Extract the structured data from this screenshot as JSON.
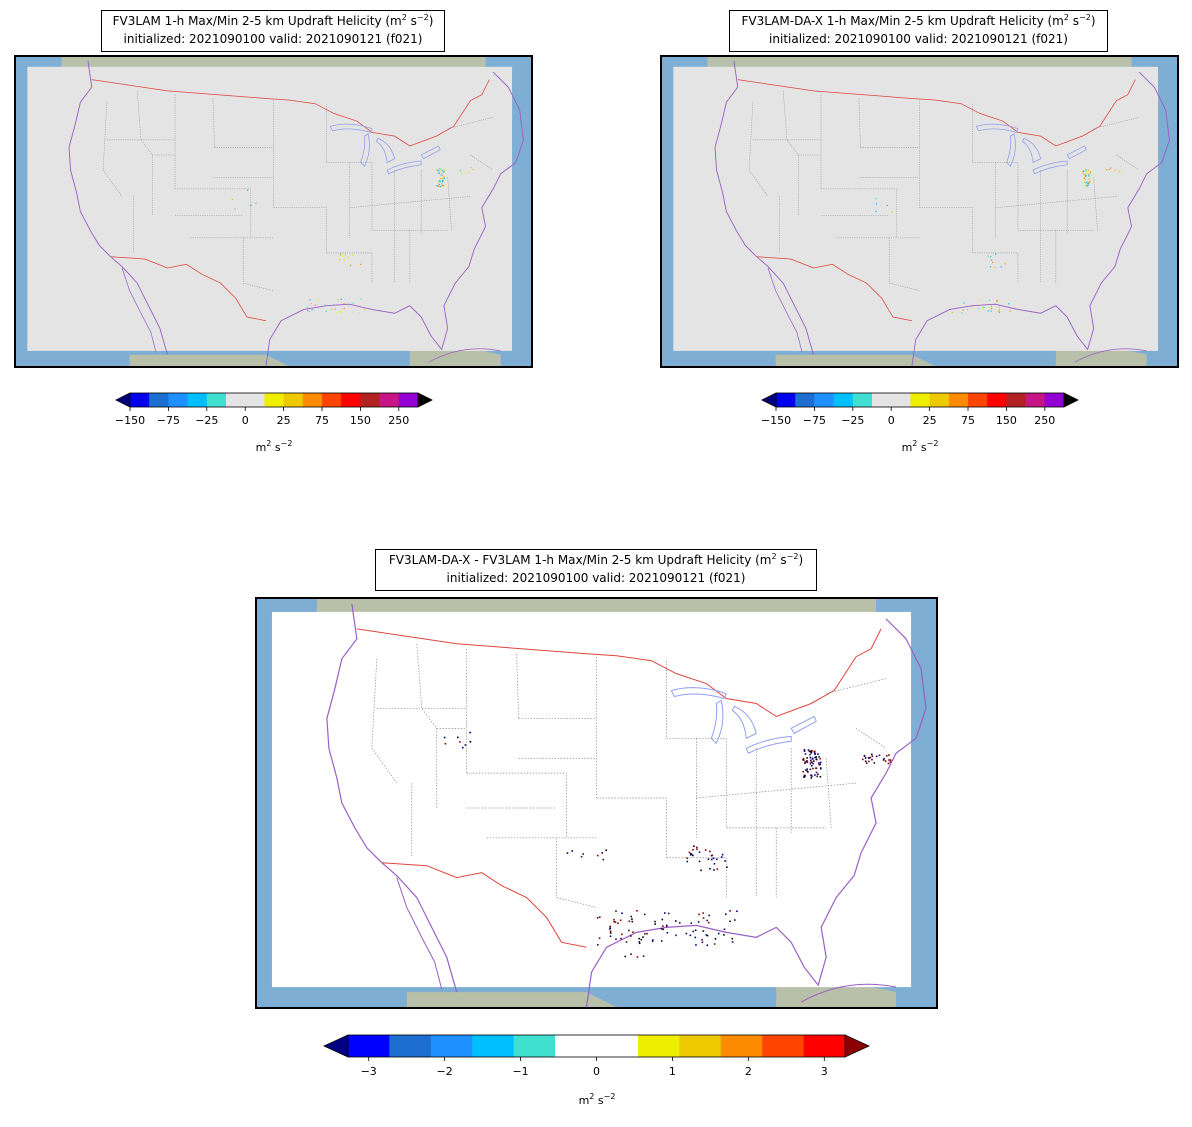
{
  "panels": [
    {
      "title_prefix": "FV3LAM 1-h Max/Min 2-5 km Updraft Helicity (m",
      "title_sup1": "2",
      "title_mid": " s",
      "title_sup2": "−2",
      "title_end": ")",
      "subtitle": "initialized: 2021090100 valid: 2021090121 (f021)",
      "field_fill": "#e4e4e4"
    },
    {
      "title_prefix": "FV3LAM-DA-X 1-h Max/Min 2-5 km Updraft Helicity (m",
      "title_sup1": "2",
      "title_mid": " s",
      "title_sup2": "−2",
      "title_end": ")",
      "subtitle": "initialized: 2021090100 valid: 2021090121 (f021)",
      "field_fill": "#e4e4e4"
    },
    {
      "title_prefix": "FV3LAM-DA-X - FV3LAM 1-h Max/Min 2-5 km Updraft Helicity (m",
      "title_sup1": "2",
      "title_mid": " s",
      "title_sup2": "−2",
      "title_end": ")",
      "subtitle": "initialized: 2021090100 valid: 2021090121 (f021)",
      "field_fill": "#ffffff"
    }
  ],
  "colorbar_uh": {
    "colors": [
      "#0000ee",
      "#1c6fd0",
      "#1e90ff",
      "#00bfff",
      "#40e0d0",
      "#e4e4e4",
      "#e4e4e4",
      "#eeee00",
      "#eec900",
      "#ff8c00",
      "#ff4500",
      "#ff0000",
      "#b22222",
      "#c71585",
      "#9400d3"
    ],
    "under_color": "#000080",
    "over_color": "#000000",
    "tick_labels": [
      "−150",
      "−75",
      "−25",
      "0",
      "25",
      "75",
      "150",
      "250"
    ],
    "unit_base": "m",
    "unit_sup1": "2",
    "unit_mid": " s",
    "unit_sup2": "−2"
  },
  "colorbar_diff": {
    "colors": [
      "#0000ff",
      "#1c6fd0",
      "#1e90ff",
      "#00bfff",
      "#40e0d0",
      "#ffffff",
      "#ffffff",
      "#eeee00",
      "#eec900",
      "#ff8c00",
      "#ff4500",
      "#ff0000"
    ],
    "under_color": "#000080",
    "over_color": "#8b0000",
    "tick_labels": [
      "−3",
      "−2",
      "−1",
      "0",
      "1",
      "2",
      "3"
    ],
    "unit_base": "m",
    "unit_sup1": "2",
    "unit_mid": " s",
    "unit_sup2": "−2"
  },
  "map_colors": {
    "ocean": "#7eaed3",
    "land_edge": "#c8c4a0",
    "coast": "#9a5fc4",
    "lakes": "#8f9ff0",
    "border_intl": "#e0443a",
    "state_lines": "#8c8c8c"
  }
}
